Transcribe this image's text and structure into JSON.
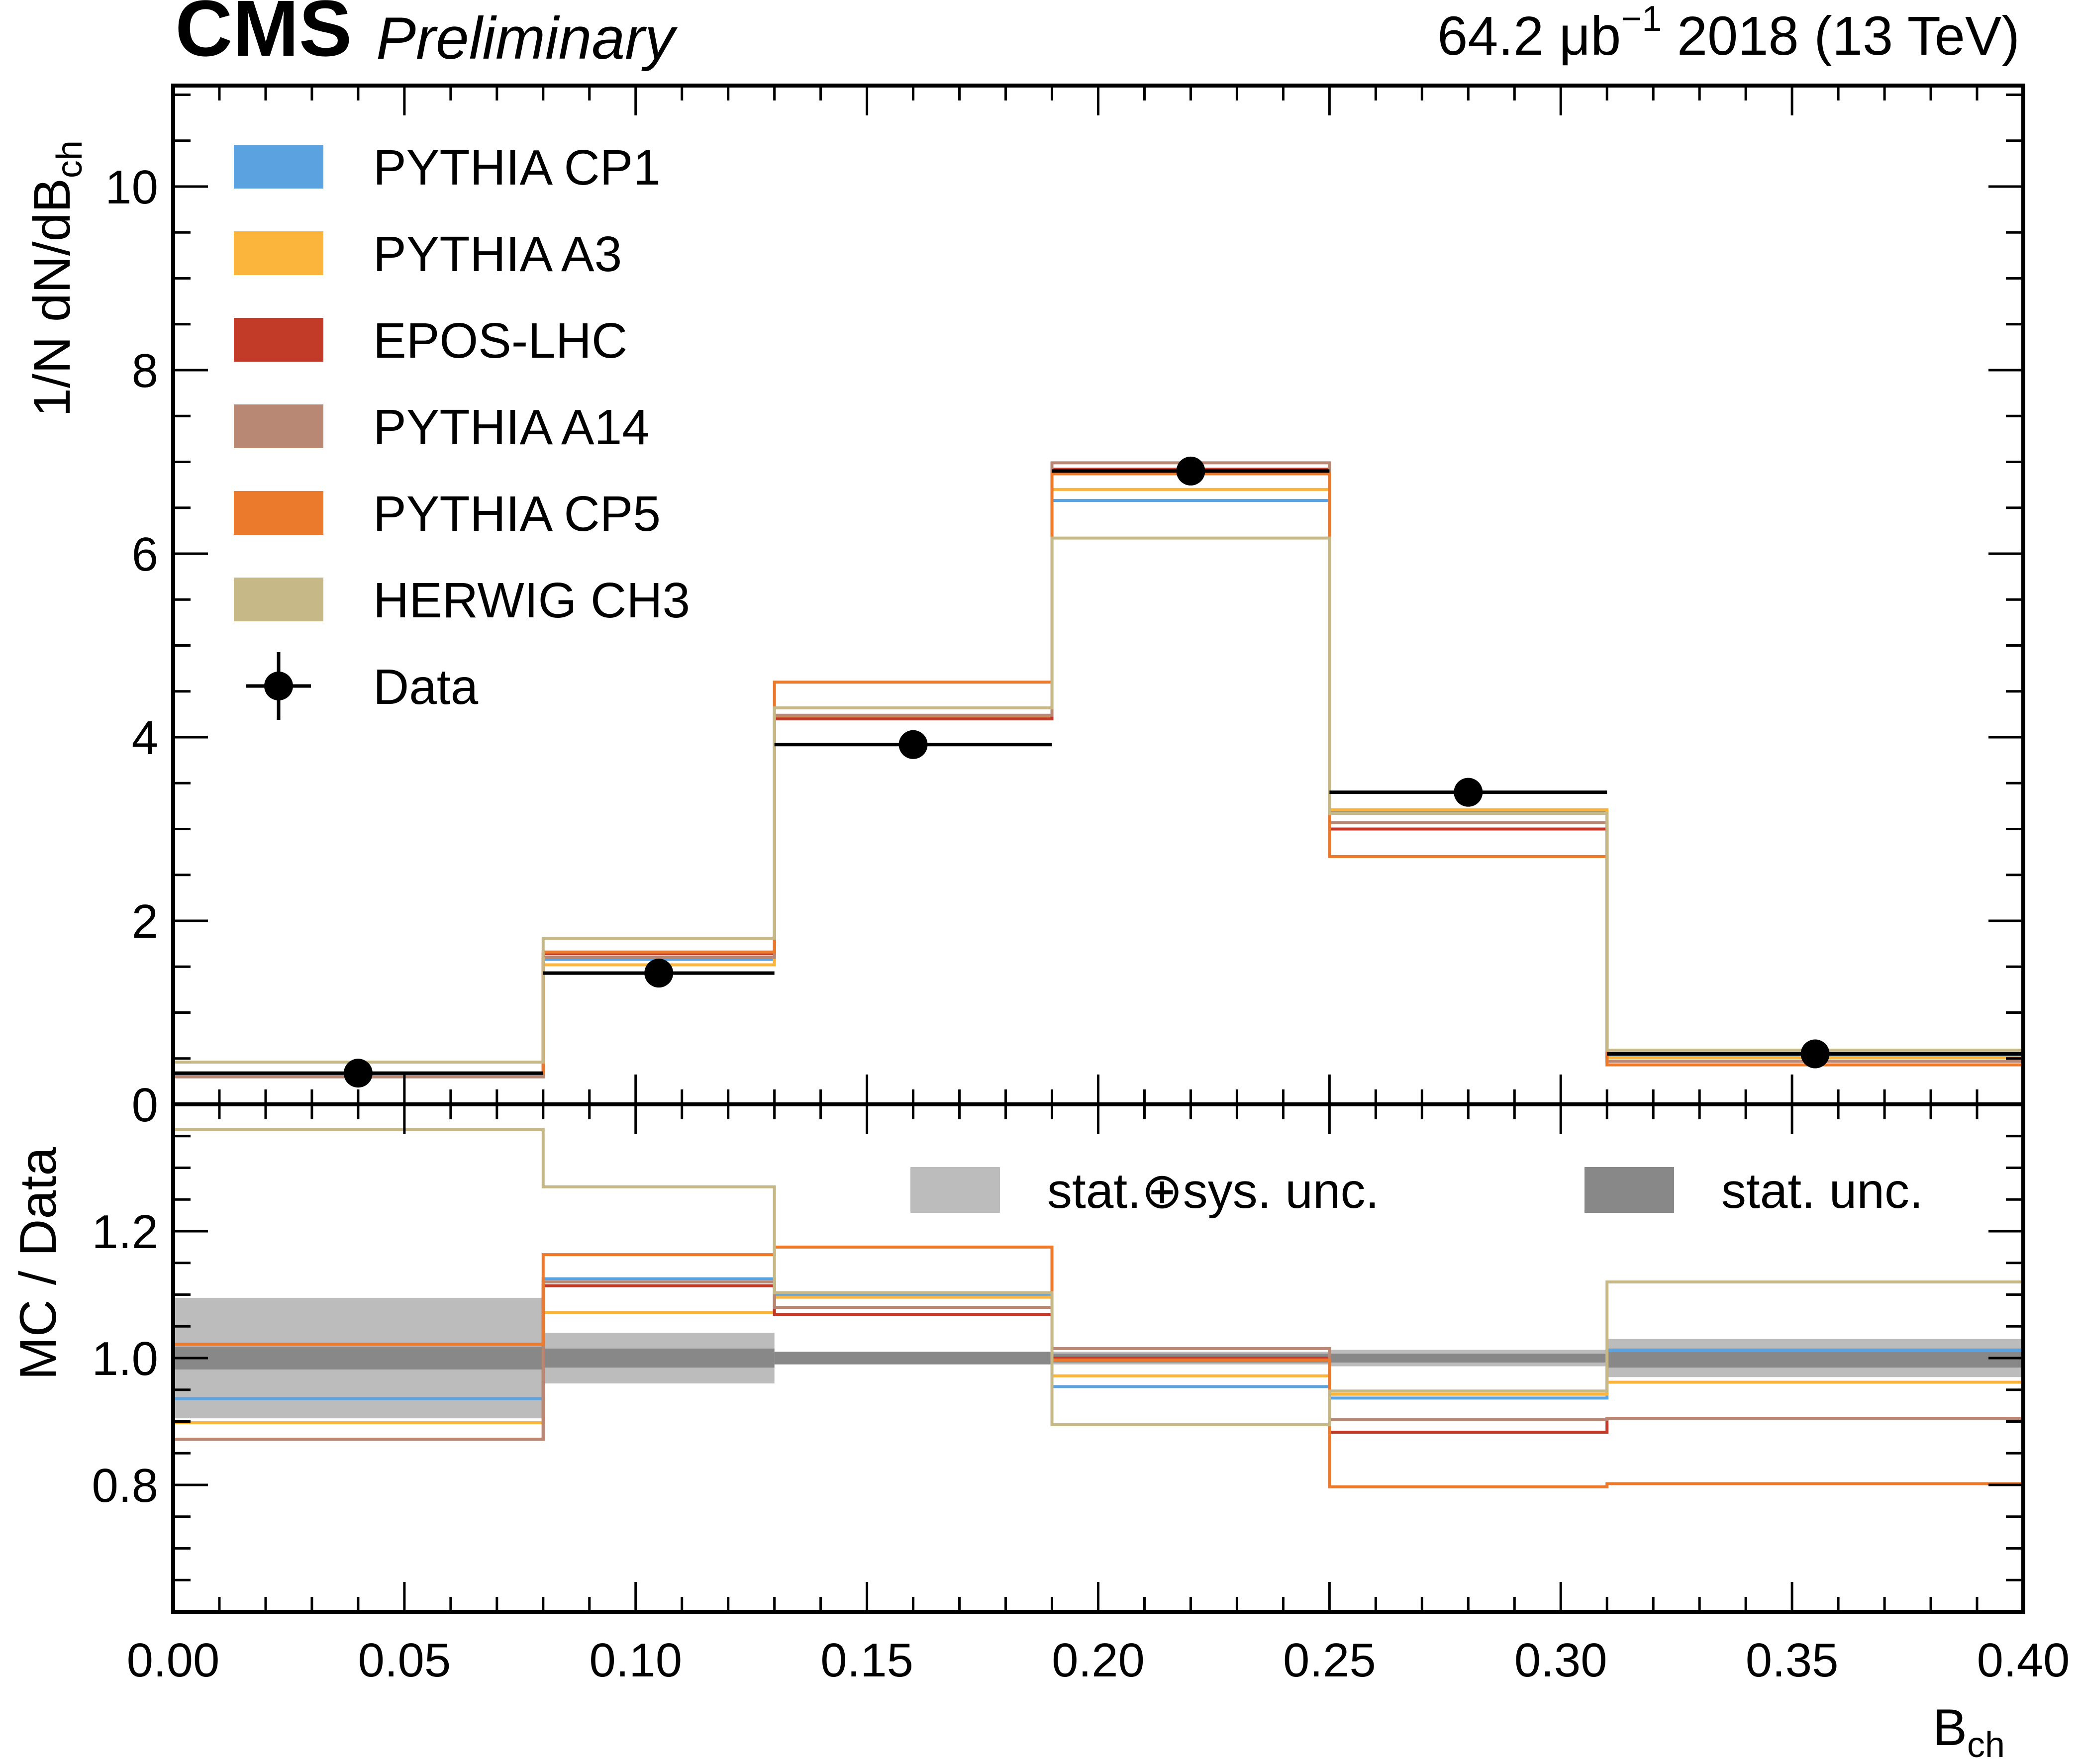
{
  "header": {
    "experiment": "CMS",
    "status": "Preliminary",
    "lumi_value": "64.2 μb",
    "lumi_exponent": "−1",
    "lumi_rest": " 2018 (13 TeV)"
  },
  "chart_data": [
    {
      "type": "histogram",
      "panel": "main",
      "xlabel": "B",
      "xlabel_sub": "ch",
      "ylabel": "1/N dN/dB",
      "ylabel_sub": "ch",
      "xlim": [
        0.0,
        0.4
      ],
      "ylim": [
        0,
        11.1
      ],
      "x_ticks": [
        "0.00",
        "0.05",
        "0.10",
        "0.15",
        "0.20",
        "0.25",
        "0.30",
        "0.35",
        "0.40"
      ],
      "y_ticks": [
        "0",
        "2",
        "4",
        "6",
        "8",
        "10"
      ],
      "bin_edges": [
        0.0,
        0.08,
        0.13,
        0.19,
        0.25,
        0.31,
        0.4
      ],
      "legend_position": "top-left",
      "series": [
        {
          "name": "PYTHIA CP1",
          "color": "#5aa2e0",
          "values": [
            0.32,
            1.58,
            4.22,
            6.58,
            3.18,
            0.53
          ]
        },
        {
          "name": "PYTHIA A3",
          "color": "#fbb53c",
          "values": [
            0.3,
            1.52,
            4.21,
            6.7,
            3.21,
            0.51
          ]
        },
        {
          "name": "EPOS-LHC",
          "color": "#c23b28",
          "values": [
            0.3,
            1.64,
            4.2,
            6.92,
            3.0,
            0.47
          ]
        },
        {
          "name": "PYTHIA A14",
          "color": "#b98875",
          "values": [
            0.3,
            1.6,
            4.24,
            6.99,
            3.07,
            0.47
          ]
        },
        {
          "name": "PYTHIA CP5",
          "color": "#ec7a2c",
          "values": [
            0.34,
            1.66,
            4.6,
            6.87,
            2.7,
            0.43
          ]
        },
        {
          "name": "HERWIG CH3",
          "color": "#c6b987",
          "values": [
            0.46,
            1.81,
            4.32,
            6.17,
            3.17,
            0.59
          ]
        }
      ],
      "data": {
        "name": "Data",
        "color": "#000000",
        "x": [
          0.04,
          0.105,
          0.16,
          0.22,
          0.28,
          0.355
        ],
        "y": [
          0.34,
          1.43,
          3.92,
          6.9,
          3.4,
          0.55
        ]
      }
    },
    {
      "type": "histogram-ratio",
      "panel": "ratio",
      "ylabel": "MC / Data",
      "ylim": [
        0.6,
        1.4
      ],
      "y_ticks": [
        "0.8",
        "1.0",
        "1.2"
      ],
      "bin_edges": [
        0.0,
        0.08,
        0.13,
        0.19,
        0.25,
        0.31,
        0.4
      ],
      "legend_position": "top-right",
      "bands": [
        {
          "name": "stat.⊕sys. unc.",
          "color": "#bcbcbc",
          "lo": [
            0.905,
            0.96,
            0.993,
            0.99,
            0.987,
            0.97
          ],
          "hi": [
            1.095,
            1.04,
            1.007,
            1.01,
            1.013,
            1.03
          ]
        },
        {
          "name": "stat. unc.",
          "color": "#888888",
          "lo": [
            0.982,
            0.985,
            0.99,
            0.993,
            0.993,
            0.985
          ],
          "hi": [
            1.018,
            1.015,
            1.01,
            1.007,
            1.007,
            1.015
          ]
        }
      ],
      "series": [
        {
          "name": "PYTHIA CP1",
          "color": "#5aa2e0",
          "values": [
            0.936,
            1.125,
            1.1,
            0.955,
            0.937,
            1.012
          ]
        },
        {
          "name": "PYTHIA A3",
          "color": "#fbb53c",
          "values": [
            0.898,
            1.072,
            1.096,
            0.972,
            0.943,
            0.962
          ]
        },
        {
          "name": "EPOS-LHC",
          "color": "#c23b28",
          "values": [
            0.872,
            1.114,
            1.069,
            1.0,
            0.883,
            0.905
          ]
        },
        {
          "name": "PYTHIA A14",
          "color": "#b98875",
          "values": [
            0.872,
            1.12,
            1.08,
            1.015,
            0.903,
            0.905
          ]
        },
        {
          "name": "PYTHIA CP5",
          "color": "#ec7a2c",
          "values": [
            1.022,
            1.163,
            1.175,
            0.997,
            0.797,
            0.802
          ]
        },
        {
          "name": "HERWIG CH3",
          "color": "#c6b987",
          "values": [
            1.36,
            1.27,
            1.103,
            0.895,
            0.948,
            1.12
          ]
        }
      ]
    }
  ]
}
